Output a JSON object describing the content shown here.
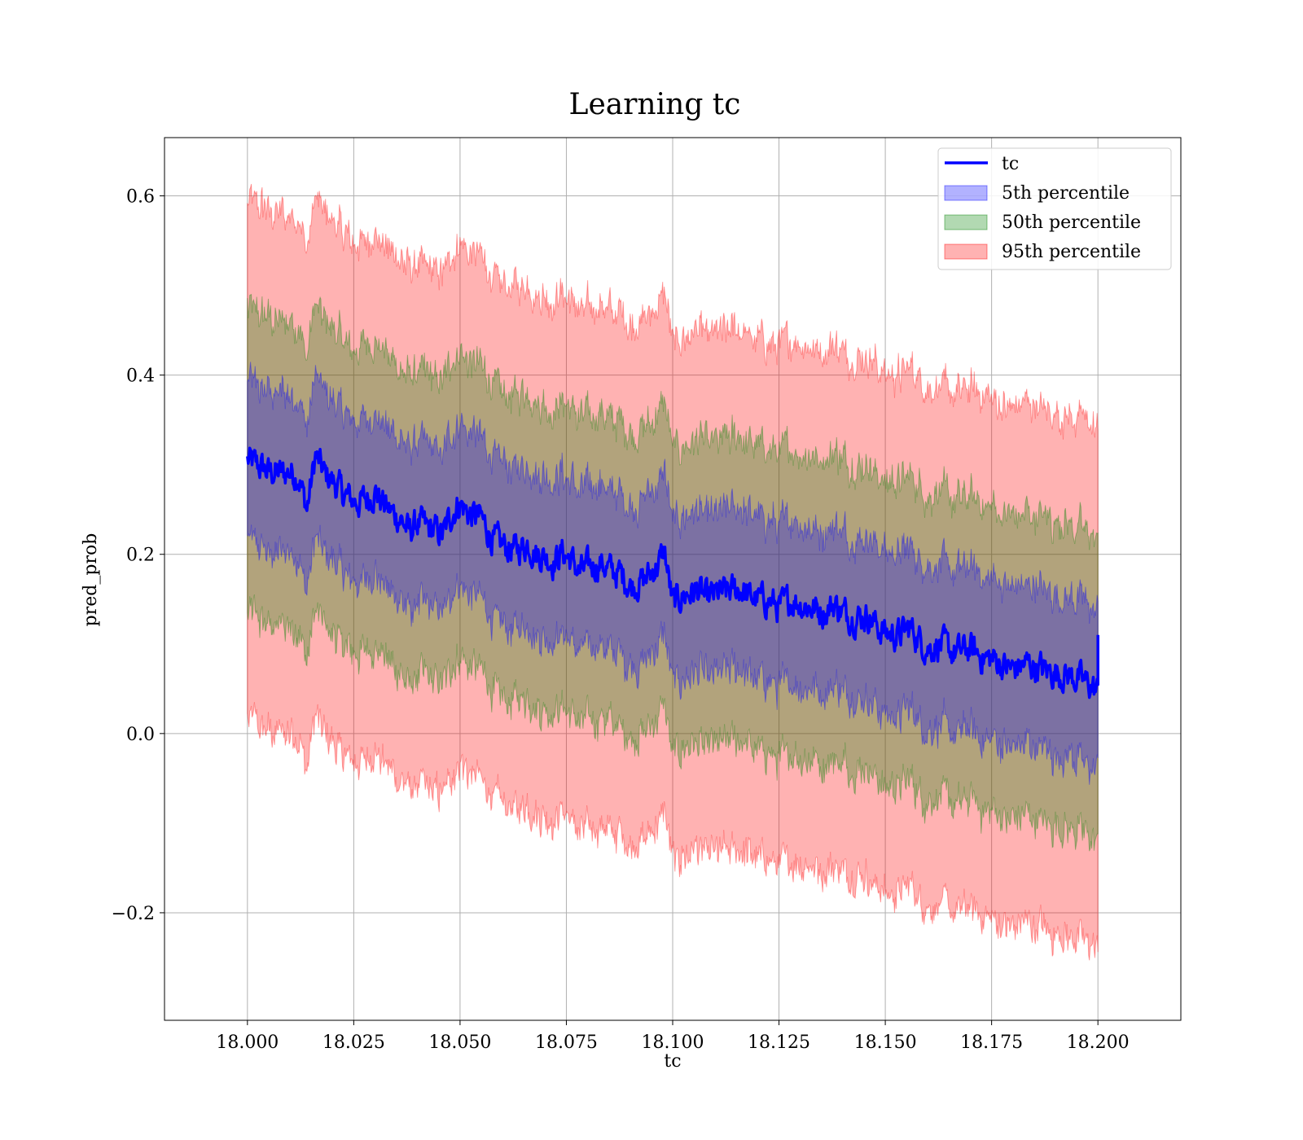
{
  "chart_data": {
    "type": "line",
    "title": "Learning tc",
    "xlabel": "tc",
    "ylabel": "pred_prob",
    "xlim": [
      17.9805,
      18.2195
    ],
    "ylim": [
      -0.32,
      0.665
    ],
    "xticks": [
      18.0,
      18.025,
      18.05,
      18.075,
      18.1,
      18.125,
      18.15,
      18.175,
      18.2
    ],
    "xtick_labels": [
      "18.000",
      "18.025",
      "18.050",
      "18.075",
      "18.100",
      "18.125",
      "18.150",
      "18.175",
      "18.200"
    ],
    "yticks": [
      -0.2,
      0.0,
      0.2,
      0.4,
      0.6
    ],
    "ytick_labels": [
      "−0.2",
      "0.0",
      "0.2",
      "0.4",
      "0.6"
    ],
    "grid": true,
    "legend_position": "top-right",
    "legend": [
      {
        "label": "tc",
        "kind": "line",
        "color": "#0000ff"
      },
      {
        "label": "5th percentile",
        "kind": "band",
        "color": "#0000ff"
      },
      {
        "label": "50th percentile",
        "kind": "band",
        "color": "#008000"
      },
      {
        "label": "95th percentile",
        "kind": "band",
        "color": "#ff0000"
      }
    ],
    "series": [
      {
        "name": "tc",
        "color": "#0000ff",
        "x": [
          18.0,
          18.002,
          18.005,
          18.008,
          18.01,
          18.012,
          18.014,
          18.016,
          18.018,
          18.02,
          18.023,
          18.026,
          18.028,
          18.03,
          18.033,
          18.036,
          18.038,
          18.04,
          18.043,
          18.046,
          18.048,
          18.05,
          18.052,
          18.055,
          18.058,
          18.06,
          18.063,
          18.066,
          18.068,
          18.07,
          18.072,
          18.074,
          18.076,
          18.078,
          18.08,
          18.083,
          18.086,
          18.088,
          18.09,
          18.093,
          18.095,
          18.097,
          18.098,
          18.1,
          18.103,
          18.106,
          18.108,
          18.11,
          18.113,
          18.116,
          18.118,
          18.12,
          18.123,
          18.125,
          18.128,
          18.13,
          18.133,
          18.136,
          18.138,
          18.14,
          18.143,
          18.146,
          18.148,
          18.15,
          18.153,
          18.156,
          18.158,
          18.16,
          18.163,
          18.166,
          18.168,
          18.17,
          18.173,
          18.176,
          18.178,
          18.18,
          18.183,
          18.186,
          18.188,
          18.19,
          18.193,
          18.196,
          18.198,
          18.2
        ],
        "y": [
          0.305,
          0.3,
          0.292,
          0.29,
          0.292,
          0.288,
          0.25,
          0.31,
          0.29,
          0.282,
          0.265,
          0.258,
          0.262,
          0.27,
          0.25,
          0.24,
          0.225,
          0.235,
          0.228,
          0.222,
          0.245,
          0.258,
          0.245,
          0.24,
          0.215,
          0.21,
          0.205,
          0.212,
          0.2,
          0.198,
          0.192,
          0.202,
          0.195,
          0.18,
          0.185,
          0.19,
          0.18,
          0.178,
          0.165,
          0.17,
          0.18,
          0.192,
          0.205,
          0.145,
          0.155,
          0.16,
          0.15,
          0.155,
          0.158,
          0.162,
          0.152,
          0.15,
          0.148,
          0.14,
          0.15,
          0.145,
          0.14,
          0.135,
          0.145,
          0.135,
          0.13,
          0.132,
          0.12,
          0.112,
          0.11,
          0.118,
          0.105,
          0.095,
          0.1,
          0.09,
          0.092,
          0.095,
          0.085,
          0.082,
          0.075,
          0.072,
          0.078,
          0.074,
          0.07,
          0.068,
          0.065,
          0.06,
          0.055,
          0.045
        ]
      }
    ],
    "bands": [
      {
        "name": "5th percentile",
        "color": "#0000ff",
        "offset": 0.09
      },
      {
        "name": "50th percentile",
        "color": "#008000",
        "offset": 0.17
      },
      {
        "name": "95th percentile",
        "color": "#ff0000",
        "offset": 0.29
      }
    ]
  }
}
